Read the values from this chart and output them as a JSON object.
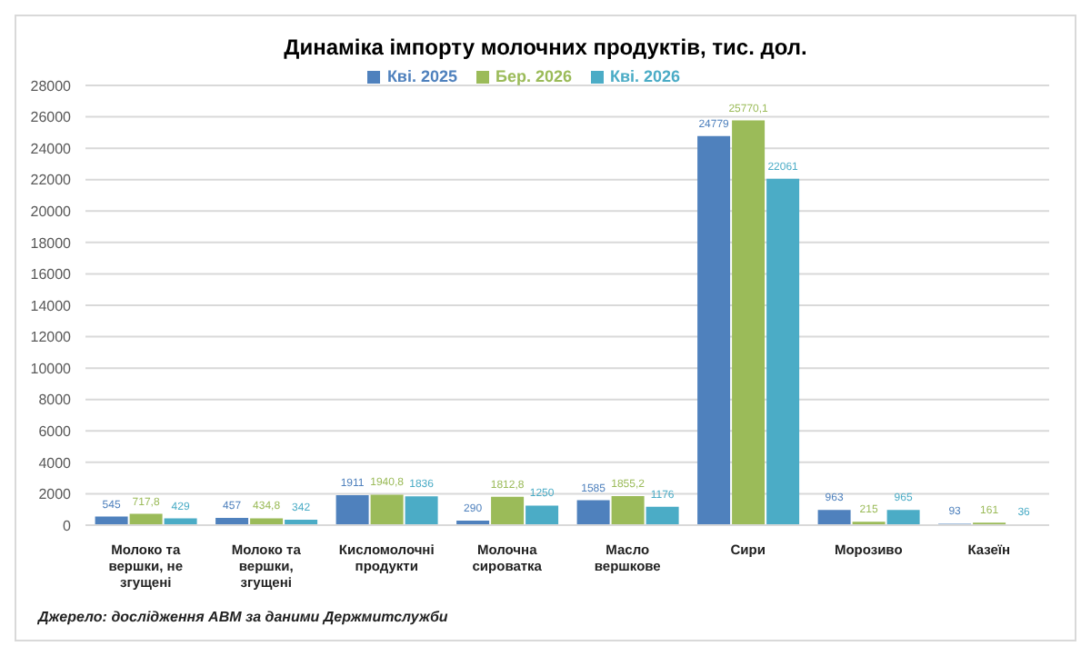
{
  "chart_data": {
    "type": "bar",
    "title": "Динаміка імпорту молочних продуктів, тис. дол.",
    "categories": [
      "Молоко та вершки, не згущені",
      "Молоко та вершки, згущені",
      "Кисломолочні продукти",
      "Молочна сироватка",
      "Масло вершкове",
      "Сири",
      "Морозиво",
      "Казеїн"
    ],
    "series": [
      {
        "name": "Кві. 2025",
        "color": "#4f81bd",
        "values": [
          545,
          457,
          1911,
          290,
          1585,
          24779,
          963,
          93
        ],
        "value_labels": [
          "545",
          "457",
          "1911",
          "290",
          "1585",
          "24779",
          "963",
          "93"
        ]
      },
      {
        "name": "Бер. 2026",
        "color": "#9bbb59",
        "values": [
          717.8,
          434.8,
          1940.8,
          1812.8,
          1855.2,
          25770.1,
          215,
          161
        ],
        "value_labels": [
          "717,8",
          "434,8",
          "1940,8",
          "1812,8",
          "1855,2",
          "25770,1",
          "215",
          "161"
        ]
      },
      {
        "name": "Кві. 2026",
        "color": "#4bacc6",
        "values": [
          429,
          342,
          1836,
          1250,
          1176,
          22061,
          965,
          36
        ],
        "value_labels": [
          "429",
          "342",
          "1836",
          "1250",
          "1176",
          "22061",
          "965",
          "36"
        ]
      }
    ],
    "ylim": [
      0,
      28000
    ],
    "yticks": [
      0,
      2000,
      4000,
      6000,
      8000,
      10000,
      12000,
      14000,
      16000,
      18000,
      20000,
      22000,
      24000,
      26000,
      28000
    ],
    "grid": "y",
    "legend": "top",
    "annotations": [
      "Джерело: дослідження АВМ за даними Держмитслужби"
    ]
  }
}
